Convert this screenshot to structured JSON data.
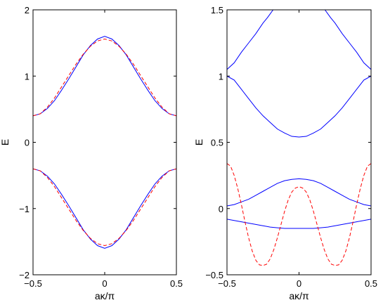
{
  "chart_data": [
    {
      "type": "line",
      "xlabel": "aκ/π",
      "ylabel": "E",
      "xlim": [
        -0.5,
        0.5
      ],
      "ylim": [
        -2,
        2
      ],
      "xticks": [
        -0.5,
        0,
        0.5
      ],
      "xtick_labels": [
        "−0.5",
        "0",
        "0.5"
      ],
      "yticks": [
        -2,
        -1,
        0,
        1,
        2
      ],
      "ytick_labels": [
        "−2",
        "−1",
        "0",
        "1",
        "2"
      ],
      "grid": false,
      "series": [
        {
          "color": "#0000ff",
          "style": "solid",
          "x": [
            -0.5,
            -0.45,
            -0.4,
            -0.35,
            -0.3,
            -0.25,
            -0.2,
            -0.15,
            -0.1,
            -0.05,
            0,
            0.05,
            0.1,
            0.15,
            0.2,
            0.25,
            0.3,
            0.35,
            0.4,
            0.45,
            0.5
          ],
          "y": [
            0.4,
            0.43,
            0.51,
            0.63,
            0.79,
            0.96,
            1.14,
            1.32,
            1.46,
            1.56,
            1.6,
            1.56,
            1.46,
            1.32,
            1.14,
            0.96,
            0.79,
            0.63,
            0.51,
            0.43,
            0.4
          ]
        },
        {
          "color": "#0000ff",
          "style": "solid",
          "x": [
            -0.5,
            -0.45,
            -0.4,
            -0.35,
            -0.3,
            -0.25,
            -0.2,
            -0.15,
            -0.1,
            -0.05,
            0,
            0.05,
            0.1,
            0.15,
            0.2,
            0.25,
            0.3,
            0.35,
            0.4,
            0.45,
            0.5
          ],
          "y": [
            -0.4,
            -0.43,
            -0.51,
            -0.63,
            -0.79,
            -0.96,
            -1.14,
            -1.32,
            -1.46,
            -1.56,
            -1.6,
            -1.56,
            -1.46,
            -1.32,
            -1.14,
            -0.96,
            -0.79,
            -0.63,
            -0.51,
            -0.43,
            -0.4
          ]
        },
        {
          "color": "#ff0000",
          "style": "dashed",
          "x": [
            -0.5,
            -0.45,
            -0.4,
            -0.35,
            -0.3,
            -0.25,
            -0.2,
            -0.15,
            -0.1,
            -0.05,
            0,
            0.05,
            0.1,
            0.15,
            0.2,
            0.25,
            0.3,
            0.35,
            0.4,
            0.45,
            0.5
          ],
          "y": [
            0.4,
            0.43,
            0.53,
            0.67,
            0.84,
            1.01,
            1.18,
            1.33,
            1.45,
            1.53,
            1.56,
            1.53,
            1.45,
            1.33,
            1.18,
            1.01,
            0.84,
            0.67,
            0.53,
            0.43,
            0.4
          ]
        },
        {
          "color": "#ff0000",
          "style": "dashed",
          "x": [
            -0.5,
            -0.45,
            -0.4,
            -0.35,
            -0.3,
            -0.25,
            -0.2,
            -0.15,
            -0.1,
            -0.05,
            0,
            0.05,
            0.1,
            0.15,
            0.2,
            0.25,
            0.3,
            0.35,
            0.4,
            0.45,
            0.5
          ],
          "y": [
            -0.4,
            -0.43,
            -0.53,
            -0.67,
            -0.84,
            -1.01,
            -1.18,
            -1.33,
            -1.45,
            -1.53,
            -1.56,
            -1.53,
            -1.45,
            -1.33,
            -1.18,
            -1.01,
            -0.84,
            -0.67,
            -0.53,
            -0.43,
            -0.4
          ]
        }
      ]
    },
    {
      "type": "line",
      "xlabel": "aκ/π",
      "ylabel": "E",
      "xlim": [
        -0.5,
        0.5
      ],
      "ylim": [
        -0.5,
        1.5
      ],
      "xticks": [
        -0.5,
        0,
        0.5
      ],
      "xtick_labels": [
        "−0.5",
        "0",
        "0.5"
      ],
      "yticks": [
        -0.5,
        0,
        0.5,
        1,
        1.5
      ],
      "ytick_labels": [
        "−0.5",
        "0",
        "0.5",
        "1",
        "1.5"
      ],
      "grid": false,
      "series": [
        {
          "color": "#0000ff",
          "style": "solid",
          "x": [
            -0.5,
            -0.45,
            -0.4,
            -0.35,
            -0.3,
            -0.25,
            -0.22,
            -0.2,
            -0.18,
            -0.15
          ],
          "y": [
            1.05,
            1.1,
            1.18,
            1.25,
            1.32,
            1.4,
            1.44,
            1.47,
            1.5,
            1.54
          ]
        },
        {
          "color": "#0000ff",
          "style": "solid",
          "x": [
            0.15,
            0.18,
            0.2,
            0.22,
            0.25,
            0.3,
            0.35,
            0.4,
            0.45,
            0.5
          ],
          "y": [
            1.54,
            1.5,
            1.47,
            1.44,
            1.4,
            1.32,
            1.25,
            1.18,
            1.1,
            1.05
          ]
        },
        {
          "color": "#0000ff",
          "style": "solid",
          "x": [
            -0.5,
            -0.45,
            -0.4,
            -0.35,
            -0.3,
            -0.25,
            -0.2,
            -0.15,
            -0.1,
            -0.05,
            0,
            0.05,
            0.1,
            0.15,
            0.2,
            0.25,
            0.3,
            0.35,
            0.4,
            0.45,
            0.5
          ],
          "y": [
            1.0,
            0.97,
            0.9,
            0.83,
            0.76,
            0.7,
            0.65,
            0.6,
            0.57,
            0.545,
            0.54,
            0.545,
            0.57,
            0.6,
            0.65,
            0.7,
            0.76,
            0.83,
            0.9,
            0.97,
            1.0
          ]
        },
        {
          "color": "#0000ff",
          "style": "solid",
          "x": [
            -0.5,
            -0.45,
            -0.4,
            -0.35,
            -0.3,
            -0.25,
            -0.2,
            -0.15,
            -0.1,
            -0.05,
            0,
            0.05,
            0.1,
            0.15,
            0.2,
            0.25,
            0.3,
            0.35,
            0.4,
            0.45,
            0.5
          ],
          "y": [
            0.02,
            0.03,
            0.05,
            0.07,
            0.1,
            0.13,
            0.16,
            0.19,
            0.21,
            0.22,
            0.225,
            0.22,
            0.21,
            0.19,
            0.16,
            0.13,
            0.1,
            0.07,
            0.05,
            0.03,
            0.02
          ]
        },
        {
          "color": "#0000ff",
          "style": "solid",
          "x": [
            -0.5,
            -0.45,
            -0.4,
            -0.35,
            -0.3,
            -0.25,
            -0.2,
            -0.15,
            -0.1,
            -0.05,
            0,
            0.05,
            0.1,
            0.15,
            0.2,
            0.25,
            0.3,
            0.35,
            0.4,
            0.45,
            0.5
          ],
          "y": [
            -0.08,
            -0.09,
            -0.1,
            -0.11,
            -0.12,
            -0.13,
            -0.14,
            -0.145,
            -0.15,
            -0.15,
            -0.15,
            -0.15,
            -0.15,
            -0.145,
            -0.14,
            -0.13,
            -0.12,
            -0.11,
            -0.1,
            -0.09,
            -0.08
          ]
        },
        {
          "color": "#ff0000",
          "style": "dashed",
          "x": [
            -0.5,
            -0.475,
            -0.45,
            -0.425,
            -0.4,
            -0.375,
            -0.35,
            -0.325,
            -0.3,
            -0.275,
            -0.25,
            -0.225,
            -0.2,
            -0.175,
            -0.15,
            -0.125,
            -0.1,
            -0.075,
            -0.05,
            -0.025,
            0,
            0.025,
            0.05,
            0.075,
            0.1,
            0.125,
            0.15,
            0.175,
            0.2,
            0.225,
            0.25,
            0.275,
            0.3,
            0.325,
            0.35,
            0.375,
            0.4,
            0.425,
            0.45,
            0.475,
            0.5
          ],
          "y": [
            0.34,
            0.32,
            0.25,
            0.15,
            0.03,
            -0.1,
            -0.22,
            -0.32,
            -0.39,
            -0.425,
            -0.43,
            -0.42,
            -0.38,
            -0.31,
            -0.22,
            -0.12,
            -0.02,
            0.065,
            0.125,
            0.155,
            0.165,
            0.155,
            0.125,
            0.065,
            -0.02,
            -0.12,
            -0.22,
            -0.31,
            -0.38,
            -0.42,
            -0.43,
            -0.425,
            -0.39,
            -0.32,
            -0.22,
            -0.1,
            0.03,
            0.15,
            0.25,
            0.32,
            0.34
          ]
        }
      ]
    }
  ]
}
